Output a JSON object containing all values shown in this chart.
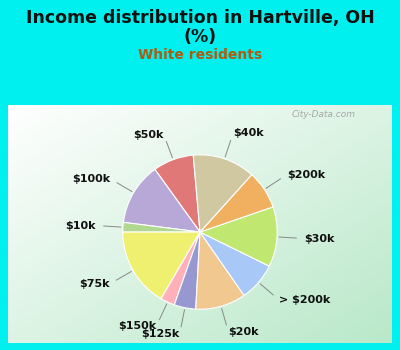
{
  "title_line1": "Income distribution in Hartville, OH",
  "title_line2": "(%)",
  "subtitle": "White residents",
  "title_color": "#111111",
  "subtitle_color": "#b05a10",
  "bg_cyan": "#00f0f0",
  "chart_bg_top": "#ffffff",
  "chart_bg_bottom": "#b8e8c8",
  "watermark": "City-Data.com",
  "labels": [
    "$50k",
    "$100k",
    "$10k",
    "$75k",
    "$150k",
    "$125k",
    "$20k",
    "> $200k",
    "$30k",
    "$200k",
    "$40k"
  ],
  "values": [
    8.5,
    13.0,
    2.0,
    16.5,
    3.0,
    4.5,
    10.5,
    8.0,
    12.5,
    8.0,
    13.0
  ],
  "colors": [
    "#e07878",
    "#b8a8d8",
    "#b0d890",
    "#f0f070",
    "#ffb0b8",
    "#9898d0",
    "#f0c890",
    "#a8c8f8",
    "#c0e870",
    "#f0b060",
    "#d0c8a0"
  ],
  "startangle": 95,
  "label_fontsize": 8,
  "title_fontsize": 12.5,
  "subtitle_fontsize": 10
}
